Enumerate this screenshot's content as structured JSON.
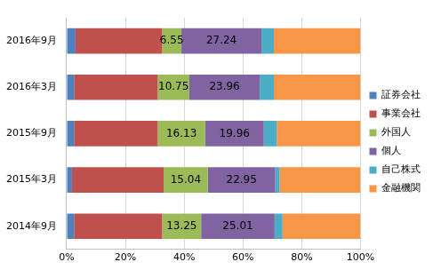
{
  "chart_data": {
    "type": "bar",
    "orientation": "horizontal",
    "stacked": true,
    "grid": true,
    "legend": "right",
    "categories": [
      "2016年9月",
      "2016年3月",
      "2015年9月",
      "2015年3月",
      "2014年9月"
    ],
    "xlim": [
      0,
      100
    ],
    "xticks": [
      {
        "value": 0,
        "label": "0%"
      },
      {
        "value": 20,
        "label": "20%"
      },
      {
        "value": 40,
        "label": "40%"
      },
      {
        "value": 60,
        "label": "60%"
      },
      {
        "value": 80,
        "label": "80%"
      },
      {
        "value": 100,
        "label": "100%"
      }
    ],
    "series": [
      {
        "name": "証券会社",
        "color": "#4F81BD",
        "values": [
          3.0,
          2.5,
          2.5,
          1.8,
          2.5
        ]
      },
      {
        "name": "事業会社",
        "color": "#C0504D",
        "values": [
          29.5,
          28.5,
          28.5,
          31.2,
          30.0
        ]
      },
      {
        "name": "外国人",
        "color": "#9BBB59",
        "values": [
          6.55,
          10.75,
          16.13,
          15.04,
          13.25
        ],
        "data_labels": true
      },
      {
        "name": "個人",
        "color": "#8064A2",
        "values": [
          27.24,
          23.96,
          19.96,
          22.95,
          25.01
        ],
        "data_labels": true
      },
      {
        "name": "自己株式",
        "color": "#4BACC6",
        "values": [
          4.2,
          4.8,
          4.4,
          1.5,
          2.7
        ]
      },
      {
        "name": "金融機関",
        "color": "#F79646",
        "values": [
          29.51,
          29.49,
          28.51,
          27.51,
          26.54
        ]
      }
    ]
  }
}
